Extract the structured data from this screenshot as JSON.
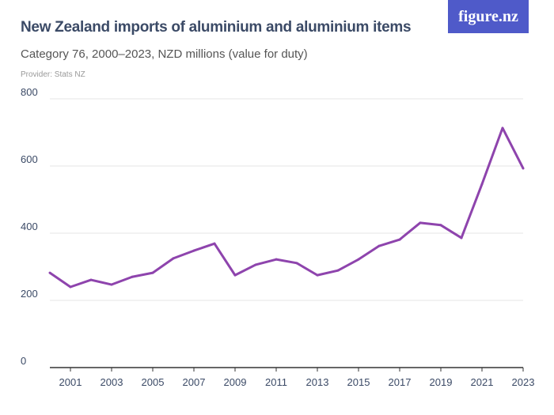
{
  "header": {
    "title": "New Zealand imports of aluminium and aluminium items",
    "subtitle": "Category 76, 2000–2023, NZD millions (value for duty)",
    "provider": "Provider: Stats NZ",
    "logo": "figure.nz"
  },
  "colors": {
    "line": "#8e44ad",
    "grid": "#e6e6e6",
    "text": "#3b4a66",
    "logo_bg": "#4f5ac9"
  },
  "chart_data": {
    "type": "line",
    "title": "New Zealand imports of aluminium and aluminium items",
    "ylim": [
      0,
      800
    ],
    "xlim": [
      2000,
      2023
    ],
    "grid": true,
    "yticks": [
      0,
      200,
      400,
      600,
      800
    ],
    "xticks": [
      2001,
      2003,
      2005,
      2007,
      2009,
      2011,
      2013,
      2015,
      2017,
      2019,
      2021,
      2023
    ],
    "x": [
      2000,
      2001,
      2002,
      2003,
      2004,
      2005,
      2006,
      2007,
      2008,
      2009,
      2010,
      2011,
      2012,
      2013,
      2014,
      2015,
      2016,
      2017,
      2018,
      2019,
      2020,
      2021,
      2022,
      2023
    ],
    "values": [
      282,
      240,
      261,
      247,
      270,
      282,
      325,
      348,
      369,
      275,
      306,
      322,
      311,
      275,
      289,
      322,
      362,
      381,
      431,
      424,
      386,
      546,
      713,
      593
    ]
  }
}
